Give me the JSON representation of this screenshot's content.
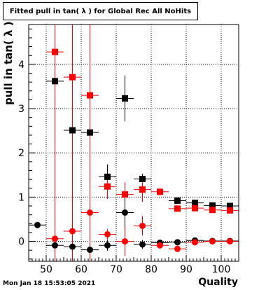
{
  "chart_data": {
    "type": "scatter",
    "title": "Fitted pull in tan( λ ) for Global Rec All NoHits",
    "xlabel": "Quality",
    "ylabel": "pull in tan( λ )",
    "xlim": [
      45,
      105
    ],
    "ylim": [
      -0.45,
      4.9
    ],
    "xticks": [
      50,
      60,
      70,
      80,
      90,
      100
    ],
    "yticks": [
      0,
      1,
      2,
      3,
      4
    ],
    "grid": true,
    "series": [
      {
        "marker": "square",
        "color": "#000000",
        "points": [
          {
            "x": 52.5,
            "y": 3.62,
            "yerr": 0.05
          },
          {
            "x": 57.5,
            "y": 2.51,
            "yerr": 0.04
          },
          {
            "x": 62.5,
            "y": 2.46,
            "yerr": 0.04
          },
          {
            "x": 67.5,
            "y": 1.46,
            "yerr": 0.28
          },
          {
            "x": 72.5,
            "y": 3.23,
            "yerr": 0.52
          },
          {
            "x": 77.5,
            "y": 1.41,
            "yerr": 0.12
          },
          {
            "x": 87.5,
            "y": 0.92,
            "yerr": 0.03
          },
          {
            "x": 92.5,
            "y": 0.87,
            "yerr": 0.03
          },
          {
            "x": 97.5,
            "y": 0.81,
            "yerr": 0.02
          },
          {
            "x": 102.5,
            "y": 0.8,
            "yerr": 0.02
          }
        ]
      },
      {
        "marker": "square",
        "color": "#ff0000",
        "points": [
          {
            "x": 52.5,
            "y": 4.28,
            "yerr": 0.05
          },
          {
            "x": 57.5,
            "y": 3.71,
            "yerr": 0.05
          },
          {
            "x": 62.5,
            "y": 3.3,
            "yerr": 0.04
          },
          {
            "x": 67.5,
            "y": 1.24,
            "yerr": 0.28
          },
          {
            "x": 72.5,
            "y": 1.06,
            "yerr": 0.28
          },
          {
            "x": 77.5,
            "y": 1.17,
            "yerr": 0.28
          },
          {
            "x": 82.5,
            "y": 1.12,
            "yerr": 0.08
          },
          {
            "x": 87.5,
            "y": 0.74,
            "yerr": 0.03
          },
          {
            "x": 92.5,
            "y": 0.75,
            "yerr": 0.03
          },
          {
            "x": 97.5,
            "y": 0.71,
            "yerr": 0.02
          },
          {
            "x": 102.5,
            "y": 0.7,
            "yerr": 0.02
          }
        ]
      },
      {
        "marker": "circle",
        "color": "#000000",
        "points": [
          {
            "x": 47.5,
            "y": 0.37,
            "yerr": 0.06
          },
          {
            "x": 52.5,
            "y": -0.09,
            "yerr": 0.06
          },
          {
            "x": 57.5,
            "y": -0.12,
            "yerr": 0.06
          },
          {
            "x": 62.5,
            "y": -0.19,
            "yerr": 0.06
          },
          {
            "x": 67.5,
            "y": -0.09,
            "yerr": 0.12
          },
          {
            "x": 72.5,
            "y": 0.65,
            "yerr": 0.33
          },
          {
            "x": 77.5,
            "y": -0.07,
            "yerr": 0.1
          },
          {
            "x": 82.5,
            "y": -0.03,
            "yerr": 0.04
          },
          {
            "x": 87.5,
            "y": -0.02,
            "yerr": 0.03
          },
          {
            "x": 92.5,
            "y": 0.02,
            "yerr": 0.02
          },
          {
            "x": 97.5,
            "y": 0.01,
            "yerr": 0.02
          },
          {
            "x": 102.5,
            "y": 0.01,
            "yerr": 0.02
          }
        ]
      },
      {
        "marker": "circle",
        "color": "#ff0000",
        "points": [
          {
            "x": 52.5,
            "y": 0.06,
            "yerr": 0.06
          },
          {
            "x": 57.5,
            "y": 0.23,
            "yerr": 0.06
          },
          {
            "x": 62.5,
            "y": 0.65,
            "yerr": 0.06
          },
          {
            "x": 67.5,
            "y": 0.16,
            "yerr": 0.12
          },
          {
            "x": 72.5,
            "y": 0.0,
            "yerr": 0.33
          },
          {
            "x": 77.5,
            "y": 0.35,
            "yerr": 0.22
          },
          {
            "x": 82.5,
            "y": -0.09,
            "yerr": 0.08
          },
          {
            "x": 87.5,
            "y": -0.17,
            "yerr": 0.04
          },
          {
            "x": 92.5,
            "y": -0.02,
            "yerr": 0.02
          },
          {
            "x": 97.5,
            "y": 0.0,
            "yerr": 0.02
          },
          {
            "x": 102.5,
            "y": 0.0,
            "yerr": 0.02
          }
        ]
      }
    ],
    "long_error_bars": [
      {
        "x": 52.5,
        "color": "#ff0000",
        "ylow": -0.45,
        "yhigh": 4.9
      },
      {
        "x": 57.5,
        "color": "#ff0000",
        "ylow": -0.45,
        "yhigh": 4.9
      },
      {
        "x": 62.5,
        "color": "#ff0000",
        "ylow": -0.45,
        "yhigh": 4.9
      }
    ],
    "xerr": 2.5
  },
  "footer": {
    "datestamp": "Mon Jan 18 15:53:05 2021"
  }
}
